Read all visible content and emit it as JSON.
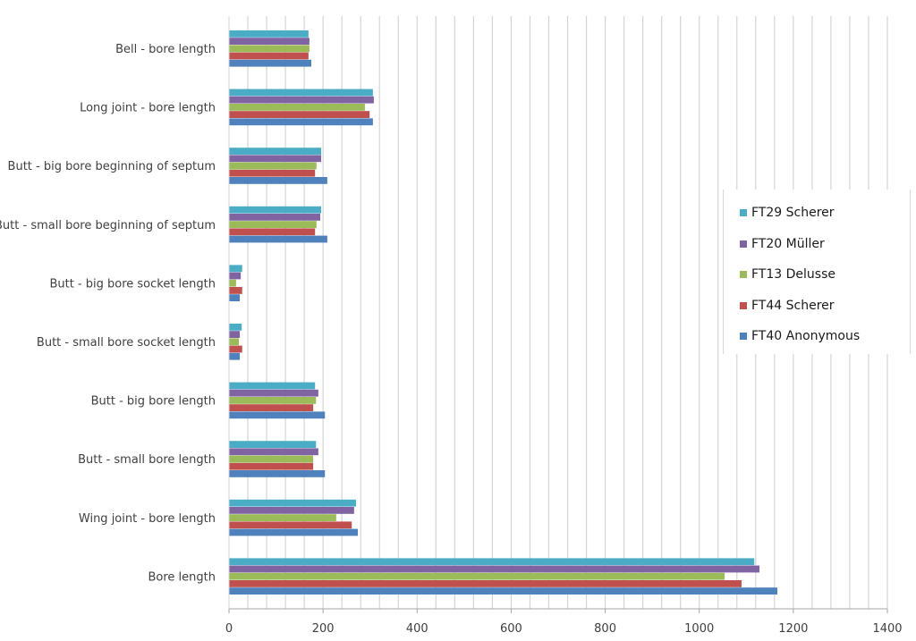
{
  "chart_data": {
    "type": "bar",
    "orientation": "horizontal",
    "title": "",
    "xlabel": "",
    "ylabel": "",
    "xlim": [
      0,
      1400
    ],
    "x_ticks": [
      0,
      200,
      400,
      600,
      800,
      1000,
      1200,
      1400
    ],
    "tick_labels": [
      "0",
      "200",
      "400",
      "600",
      "800",
      "1000",
      "1200",
      "1400"
    ],
    "minor_grid_step": 40,
    "grid": true,
    "legend_position": "right",
    "categories": [
      "Bell - bore length",
      "Long joint - bore length",
      "Butt - big bore beginning of septum",
      "Butt - small bore beginning of septum",
      "Butt - big bore socket length",
      "Butt - small bore socket length",
      "Butt - big bore length",
      "Butt - small bore length",
      "Wing joint - bore length",
      "Bore length"
    ],
    "series": [
      {
        "name": "FT29 Scherer",
        "color": "#4bacc6",
        "values": [
          169,
          306,
          196,
          196,
          28,
          27,
          183,
          185,
          270,
          1117
        ]
      },
      {
        "name": "FT20 Müller",
        "color": "#8064a2",
        "values": [
          171,
          308,
          196,
          194,
          25,
          23,
          190,
          190,
          266,
          1128
        ]
      },
      {
        "name": "FT13 Delusse",
        "color": "#9bbb59",
        "values": [
          171,
          289,
          186,
          186,
          15,
          21,
          185,
          179,
          228,
          1054
        ]
      },
      {
        "name": "FT44 Scherer",
        "color": "#c0504d",
        "values": [
          169,
          299,
          183,
          183,
          28,
          28,
          179,
          179,
          261,
          1090
        ]
      },
      {
        "name": "FT40 Anonymous",
        "color": "#4f81bd",
        "values": [
          175,
          306,
          209,
          209,
          23,
          23,
          204,
          204,
          274,
          1166
        ]
      }
    ]
  }
}
